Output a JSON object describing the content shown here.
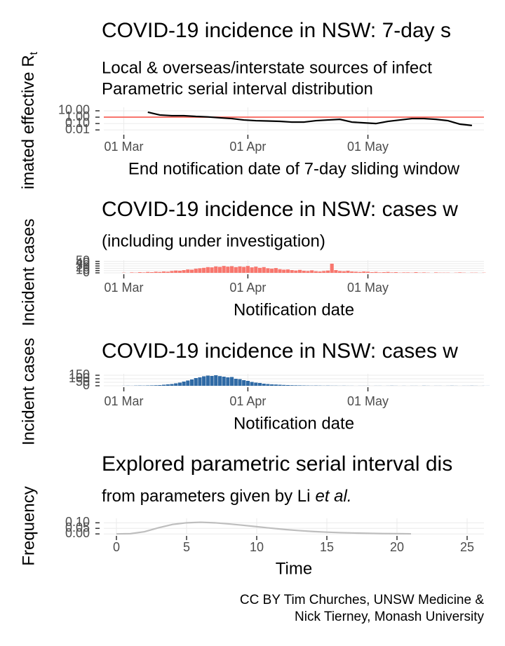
{
  "chart_data": [
    {
      "type": "line",
      "title": "COVID-19 incidence in NSW: 7-day s",
      "subtitle": [
        "Local & overseas/interstate sources of infect",
        "Parametric serial interval distribution"
      ],
      "xlabel": "End notification date of 7-day sliding window",
      "ylabel": "imated effective R",
      "ylabel_subscript": "t",
      "log_y": true,
      "grid": true,
      "color": "#000000",
      "reference_line": 1,
      "reference_color": "#f8766d",
      "xlim": [
        "24 Feb",
        "30 May"
      ],
      "xticks": [
        "01 Mar",
        "01 Apr",
        "01 May"
      ],
      "ylim": [
        0.003,
        35
      ],
      "yticks": [
        {
          "value": 0.01,
          "label": "0.01"
        },
        {
          "value": 0.1,
          "label": "0.10"
        },
        {
          "value": 1,
          "label": "1.00"
        },
        {
          "value": 10,
          "label": "10.00"
        }
      ],
      "x": [
        "07 Mar",
        "10 Mar",
        "13 Mar",
        "16 Mar",
        "19 Mar",
        "22 Mar",
        "25 Mar",
        "28 Mar",
        "31 Mar",
        "03 Apr",
        "06 Apr",
        "09 Apr",
        "12 Apr",
        "15 Apr",
        "18 Apr",
        "21 Apr",
        "24 Apr",
        "27 Apr",
        "30 Apr",
        "03 May",
        "06 May",
        "09 May",
        "12 May",
        "15 May",
        "18 May",
        "21 May",
        "24 May",
        "27 May"
      ],
      "values": [
        6,
        2.2,
        1.7,
        1.7,
        1.3,
        1.1,
        0.8,
        0.6,
        0.36,
        0.28,
        0.25,
        0.22,
        0.17,
        0.17,
        0.28,
        0.36,
        0.46,
        0.17,
        0.13,
        0.1,
        0.22,
        0.36,
        0.6,
        0.6,
        0.46,
        0.28,
        0.08,
        0.05
      ]
    },
    {
      "type": "bar",
      "title": "COVID-19 incidence in NSW: cases w",
      "subtitle": [
        "(including under investigation)"
      ],
      "xlabel": "Notification date",
      "ylabel": "Incident cases",
      "grid": true,
      "color": "#f8766d",
      "xlim": [
        "24 Feb",
        "30 May"
      ],
      "xticks": [
        "01 Mar",
        "01 Apr",
        "01 May"
      ],
      "ylim": [
        0,
        55
      ],
      "yticks": [
        0,
        10,
        20,
        30,
        40,
        50
      ],
      "x": [
        "01 Mar",
        "02 Mar",
        "03 Mar",
        "04 Mar",
        "05 Mar",
        "06 Mar",
        "07 Mar",
        "08 Mar",
        "09 Mar",
        "10 Mar",
        "11 Mar",
        "12 Mar",
        "13 Mar",
        "14 Mar",
        "15 Mar",
        "16 Mar",
        "17 Mar",
        "18 Mar",
        "19 Mar",
        "20 Mar",
        "21 Mar",
        "22 Mar",
        "23 Mar",
        "24 Mar",
        "25 Mar",
        "26 Mar",
        "27 Mar",
        "28 Mar",
        "29 Mar",
        "30 Mar",
        "31 Mar",
        "01 Apr",
        "02 Apr",
        "03 Apr",
        "04 Apr",
        "05 Apr",
        "06 Apr",
        "07 Apr",
        "08 Apr",
        "09 Apr",
        "10 Apr",
        "11 Apr",
        "12 Apr",
        "13 Apr",
        "14 Apr",
        "15 Apr",
        "16 Apr",
        "17 Apr",
        "18 Apr",
        "19 Apr",
        "20 Apr",
        "21 Apr",
        "22 Apr",
        "23 Apr",
        "24 Apr",
        "25 Apr",
        "26 Apr",
        "27 Apr",
        "28 Apr",
        "29 Apr",
        "30 Apr",
        "01 May",
        "02 May",
        "03 May",
        "04 May",
        "05 May",
        "06 May",
        "07 May",
        "08 May",
        "09 May",
        "10 May",
        "11 May",
        "12 May",
        "13 May",
        "14 May",
        "15 May",
        "16 May",
        "17 May",
        "18 May",
        "19 May",
        "20 May",
        "21 May",
        "22 May",
        "23 May",
        "24 May",
        "25 May",
        "26 May",
        "27 May",
        "28 May",
        "29 May",
        "30 May",
        "31 May"
      ],
      "values": [
        1,
        0,
        2,
        1,
        3,
        2,
        4,
        3,
        5,
        4,
        6,
        5,
        8,
        10,
        9,
        12,
        15,
        14,
        18,
        20,
        22,
        25,
        24,
        28,
        26,
        30,
        27,
        29,
        25,
        28,
        26,
        30,
        24,
        27,
        22,
        25,
        20,
        18,
        21,
        16,
        14,
        15,
        12,
        10,
        13,
        9,
        8,
        11,
        7,
        6,
        8,
        10,
        40,
        12,
        8,
        7,
        9,
        6,
        5,
        4,
        6,
        5,
        3,
        4,
        2,
        3,
        4,
        2,
        3,
        1,
        2,
        2,
        1,
        3,
        1,
        2,
        1,
        0,
        2,
        1,
        1,
        1,
        0,
        1,
        2,
        1,
        0,
        1,
        1,
        0,
        1,
        0
      ]
    },
    {
      "type": "bar",
      "title": "COVID-19 incidence in NSW: cases w",
      "xlabel": "Notification date",
      "ylabel": "Incident cases",
      "grid": true,
      "color": "#2f6aa5",
      "xlim": [
        "24 Feb",
        "30 May"
      ],
      "xticks": [
        "01 Mar",
        "01 Apr",
        "01 May"
      ],
      "ylim": [
        0,
        170
      ],
      "yticks": [
        0,
        50,
        100,
        150
      ],
      "x": [
        "01 Mar",
        "02 Mar",
        "03 Mar",
        "04 Mar",
        "05 Mar",
        "06 Mar",
        "07 Mar",
        "08 Mar",
        "09 Mar",
        "10 Mar",
        "11 Mar",
        "12 Mar",
        "13 Mar",
        "14 Mar",
        "15 Mar",
        "16 Mar",
        "17 Mar",
        "18 Mar",
        "19 Mar",
        "20 Mar",
        "21 Mar",
        "22 Mar",
        "23 Mar",
        "24 Mar",
        "25 Mar",
        "26 Mar",
        "27 Mar",
        "28 Mar",
        "29 Mar",
        "30 Mar",
        "31 Mar",
        "01 Apr",
        "02 Apr",
        "03 Apr",
        "04 Apr",
        "05 Apr",
        "06 Apr",
        "07 Apr",
        "08 Apr",
        "09 Apr",
        "10 Apr",
        "11 Apr",
        "12 Apr",
        "13 Apr",
        "14 Apr",
        "15 Apr",
        "16 Apr",
        "17 Apr",
        "18 Apr",
        "19 Apr",
        "20 Apr",
        "21 Apr",
        "22 Apr",
        "23 Apr",
        "24 Apr",
        "25 Apr",
        "26 Apr",
        "27 Apr",
        "28 Apr",
        "29 Apr",
        "30 Apr",
        "01 May",
        "02 May",
        "03 May",
        "04 May",
        "05 May",
        "06 May",
        "07 May",
        "08 May",
        "09 May",
        "10 May",
        "11 May",
        "12 May",
        "13 May",
        "14 May",
        "15 May",
        "16 May",
        "17 May",
        "18 May",
        "19 May",
        "20 May",
        "21 May",
        "22 May",
        "23 May",
        "24 May",
        "25 May",
        "26 May",
        "27 May",
        "28 May",
        "29 May",
        "30 May",
        "31 May"
      ],
      "values": [
        1,
        2,
        1,
        3,
        4,
        3,
        5,
        6,
        8,
        10,
        15,
        20,
        25,
        35,
        45,
        60,
        75,
        90,
        110,
        120,
        135,
        145,
        140,
        150,
        138,
        130,
        120,
        125,
        100,
        95,
        80,
        70,
        55,
        45,
        40,
        30,
        25,
        20,
        18,
        15,
        12,
        10,
        8,
        7,
        6,
        5,
        4,
        3,
        4,
        3,
        2,
        3,
        2,
        2,
        1,
        2,
        1,
        1,
        0,
        1,
        1,
        1,
        0,
        1,
        1,
        0,
        1,
        2,
        1,
        0,
        1,
        0,
        1,
        1,
        0,
        2,
        1,
        0,
        1,
        1,
        0,
        1,
        2,
        1,
        0,
        1,
        1,
        2,
        1,
        0,
        1,
        1
      ]
    },
    {
      "type": "line",
      "title": "Explored parametric serial interval dis",
      "subtitle_runs": [
        "from parameters given by Li",
        "et al."
      ],
      "xlabel": "Time",
      "ylabel": "Frequency",
      "grid": true,
      "color": "#bebebe",
      "xlim": [
        -0.9,
        26.2
      ],
      "xticks": [
        0,
        5,
        10,
        15,
        20,
        25
      ],
      "ylim": [
        -0.005,
        0.14
      ],
      "yticks": [
        {
          "value": 0,
          "label": "0.00"
        },
        {
          "value": 0.05,
          "label": "0.05"
        },
        {
          "value": 0.1,
          "label": "0.10"
        }
      ],
      "x": [
        0,
        1,
        2,
        3,
        4,
        5,
        6,
        7,
        8,
        9,
        10,
        11,
        12,
        13,
        14,
        15,
        16,
        17,
        18,
        19,
        20,
        21
      ],
      "values": [
        0,
        0.002,
        0.02,
        0.055,
        0.085,
        0.1,
        0.105,
        0.1,
        0.09,
        0.078,
        0.065,
        0.052,
        0.04,
        0.03,
        0.022,
        0.016,
        0.011,
        0.008,
        0.005,
        0.003,
        0.002,
        0.001
      ]
    }
  ],
  "caption": [
    "CC BY Tim Churches, UNSW Medicine &",
    "Nick Tierney, Monash University"
  ]
}
